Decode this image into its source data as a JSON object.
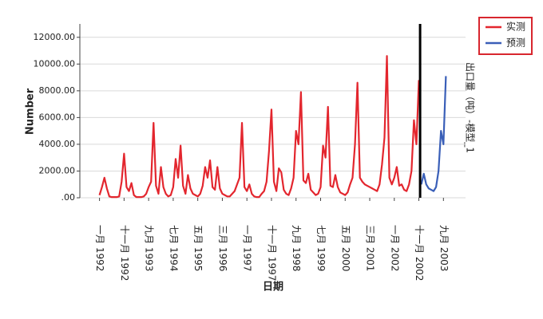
{
  "chart_data": {
    "type": "line",
    "y_label": "Number",
    "x_label": "日期",
    "right_label": "出口量（吨）-模型_1",
    "categories": [
      "一月 1992",
      null,
      null,
      null,
      null,
      null,
      null,
      null,
      null,
      null,
      "十一月 1992",
      null,
      null,
      null,
      null,
      null,
      null,
      null,
      null,
      null,
      "九月 1993",
      null,
      null,
      null,
      null,
      null,
      null,
      null,
      null,
      null,
      "七月 1994",
      null,
      null,
      null,
      null,
      null,
      null,
      null,
      null,
      null,
      "五月 1995",
      null,
      null,
      null,
      null,
      null,
      null,
      null,
      null,
      null,
      "三月 1996",
      null,
      null,
      null,
      null,
      null,
      null,
      null,
      null,
      null,
      "一月 1997",
      null,
      null,
      null,
      null,
      null,
      null,
      null,
      null,
      null,
      "十一月 1997",
      null,
      null,
      null,
      null,
      null,
      null,
      null,
      null,
      null,
      "九月 1998",
      null,
      null,
      null,
      null,
      null,
      null,
      null,
      null,
      null,
      "七月 1999",
      null,
      null,
      null,
      null,
      null,
      null,
      null,
      null,
      null,
      "五月 2000",
      null,
      null,
      null,
      null,
      null,
      null,
      null,
      null,
      null,
      "三月 2001",
      null,
      null,
      null,
      null,
      null,
      null,
      null,
      null,
      null,
      "一月 2002",
      null,
      null,
      null,
      null,
      null,
      null,
      null,
      null,
      null,
      "十一月 2002",
      null,
      null,
      null,
      null,
      null,
      null,
      null,
      null,
      null,
      "九月 2003",
      null,
      null,
      null
    ],
    "series": [
      {
        "name": "实测",
        "color": "#e3262e",
        "values": [
          200,
          800,
          1500,
          700,
          100,
          50,
          50,
          50,
          100,
          1200,
          3300,
          800,
          500,
          1100,
          200,
          50,
          50,
          50,
          100,
          300,
          800,
          1200,
          5600,
          900,
          300,
          2300,
          800,
          300,
          100,
          200,
          800,
          2900,
          1500,
          3900,
          900,
          300,
          1700,
          700,
          300,
          200,
          100,
          300,
          900,
          2300,
          1500,
          2800,
          800,
          600,
          2300,
          700,
          300,
          200,
          100,
          100,
          300,
          500,
          1000,
          1500,
          5600,
          800,
          500,
          1000,
          300,
          100,
          50,
          50,
          300,
          500,
          1200,
          3500,
          6600,
          1200,
          500,
          2200,
          1900,
          600,
          300,
          200,
          700,
          1500,
          5000,
          4000,
          7900,
          1300,
          1100,
          1800,
          600,
          400,
          200,
          300,
          800,
          3900,
          3000,
          6800,
          900,
          800,
          1700,
          800,
          400,
          300,
          200,
          400,
          1000,
          1500,
          4000,
          8600,
          1500,
          1200,
          1000,
          900,
          800,
          700,
          600,
          500,
          1000,
          2500,
          4500,
          10600,
          1500,
          1000,
          1500,
          2300,
          900,
          1000,
          600,
          500,
          1000,
          2000,
          5800,
          4000,
          8800,
          null,
          null,
          null,
          null,
          null,
          null,
          null,
          null,
          null,
          null,
          null,
          null,
          null
        ]
      },
      {
        "name": "预测",
        "color": "#3a5fb8",
        "values": [
          null,
          null,
          null,
          null,
          null,
          null,
          null,
          null,
          null,
          null,
          null,
          null,
          null,
          null,
          null,
          null,
          null,
          null,
          null,
          null,
          null,
          null,
          null,
          null,
          null,
          null,
          null,
          null,
          null,
          null,
          null,
          null,
          null,
          null,
          null,
          null,
          null,
          null,
          null,
          null,
          null,
          null,
          null,
          null,
          null,
          null,
          null,
          null,
          null,
          null,
          null,
          null,
          null,
          null,
          null,
          null,
          null,
          null,
          null,
          null,
          null,
          null,
          null,
          null,
          null,
          null,
          null,
          null,
          null,
          null,
          null,
          null,
          null,
          null,
          null,
          null,
          null,
          null,
          null,
          null,
          null,
          null,
          null,
          null,
          null,
          null,
          null,
          null,
          null,
          null,
          null,
          null,
          null,
          null,
          null,
          null,
          null,
          null,
          null,
          null,
          null,
          null,
          null,
          null,
          null,
          null,
          null,
          null,
          null,
          null,
          null,
          null,
          null,
          null,
          null,
          null,
          null,
          null,
          null,
          null,
          null,
          null,
          null,
          null,
          null,
          null,
          null,
          null,
          null,
          null,
          null,
          1000,
          1800,
          1000,
          700,
          600,
          500,
          800,
          2000,
          5000,
          4000,
          9100,
          null,
          null
        ]
      }
    ],
    "ylim": [
      0,
      13000
    ],
    "yticks": [
      {
        "value": 0,
        "label": ".00"
      },
      {
        "value": 2000,
        "label": "2000.00"
      },
      {
        "value": 4000,
        "label": "4000.00"
      },
      {
        "value": 6000,
        "label": "6000.00"
      },
      {
        "value": 8000,
        "label": "8000.00"
      },
      {
        "value": 10000,
        "label": "10000.00"
      },
      {
        "value": 12000,
        "label": "12000.00"
      }
    ],
    "grid": true,
    "legend": "top-right"
  }
}
